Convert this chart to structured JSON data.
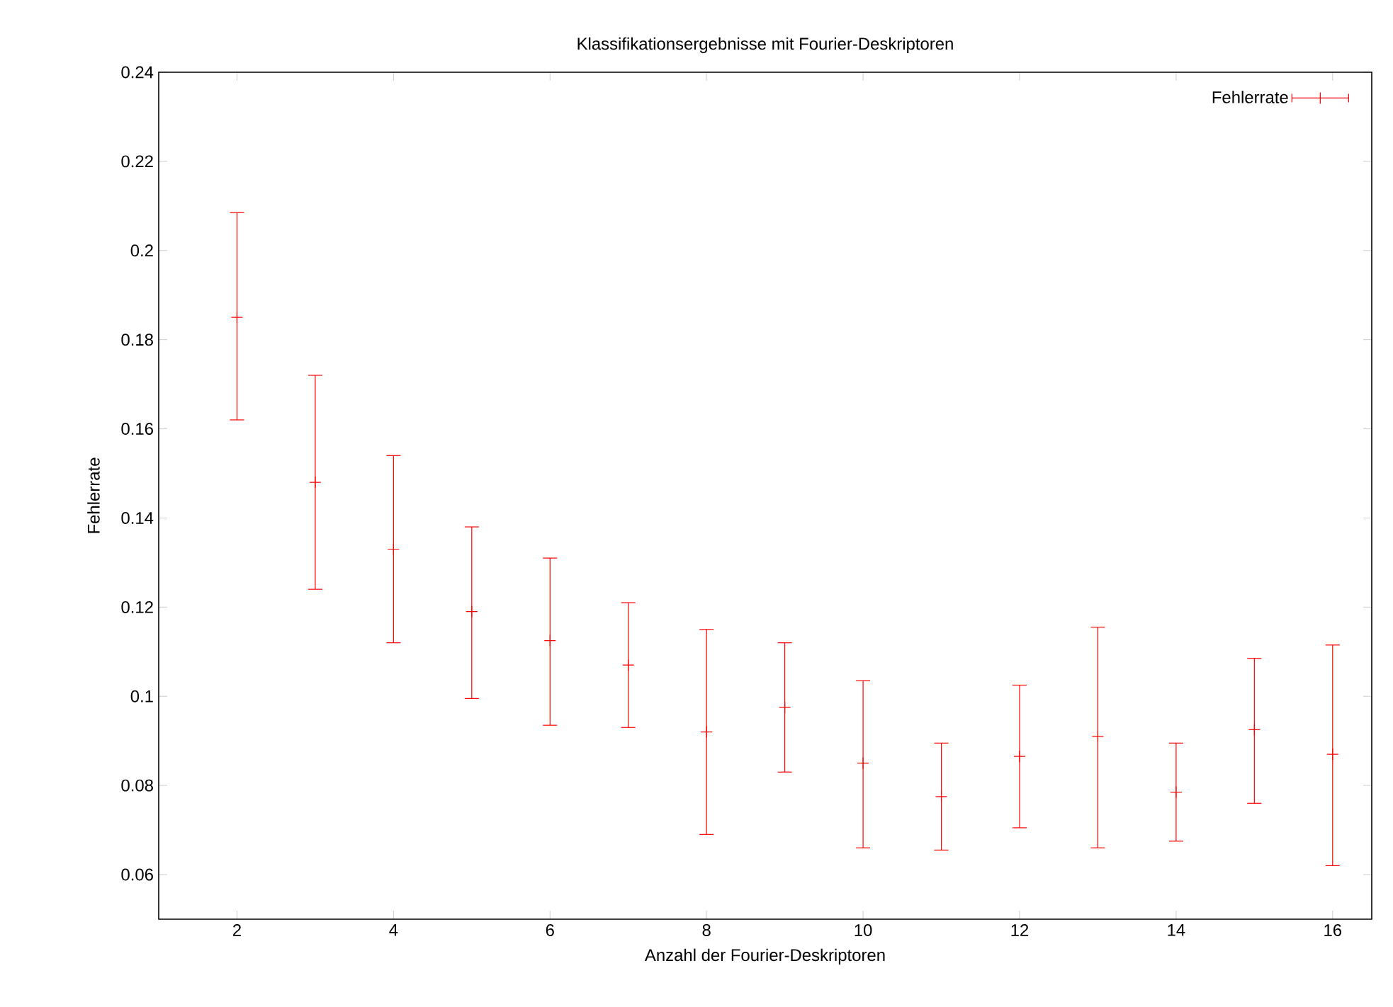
{
  "chart_data": {
    "type": "scatter",
    "title": "Klassifikationsergebnisse mit Fourier-Deskriptoren",
    "xlabel": "Anzahl der Fourier-Deskriptoren",
    "ylabel": "Fehlerrate",
    "x": [
      2,
      3,
      4,
      5,
      6,
      7,
      8,
      9,
      10,
      11,
      12,
      13,
      14,
      15,
      16
    ],
    "series": [
      {
        "name": "Fehlerrate",
        "color": "#ff0000",
        "values": [
          0.185,
          0.148,
          0.133,
          0.119,
          0.1125,
          0.107,
          0.092,
          0.0975,
          0.085,
          0.0775,
          0.0865,
          0.091,
          0.0785,
          0.0925,
          0.087
        ],
        "errors": [
          [
            0.162,
            0.2085
          ],
          [
            0.124,
            0.172
          ],
          [
            0.112,
            0.154
          ],
          [
            0.0995,
            0.138
          ],
          [
            0.0935,
            0.131
          ],
          [
            0.093,
            0.121
          ],
          [
            0.069,
            0.115
          ],
          [
            0.083,
            0.112
          ],
          [
            0.066,
            0.1035
          ],
          [
            0.0655,
            0.0895
          ],
          [
            0.0705,
            0.1025
          ],
          [
            0.066,
            0.1155
          ],
          [
            0.0675,
            0.0895
          ],
          [
            0.076,
            0.1085
          ],
          [
            0.062,
            0.1115
          ]
        ]
      }
    ],
    "xlim": [
      1,
      16.5
    ],
    "ylim": [
      0.05,
      0.24
    ],
    "xticks": [
      2,
      4,
      6,
      8,
      10,
      12,
      14,
      16
    ],
    "yticks": [
      0.06,
      0.08,
      0.1,
      0.12,
      0.14,
      0.16,
      0.18,
      0.2,
      0.22,
      0.24
    ],
    "marker": "cross",
    "legend": "top right"
  }
}
